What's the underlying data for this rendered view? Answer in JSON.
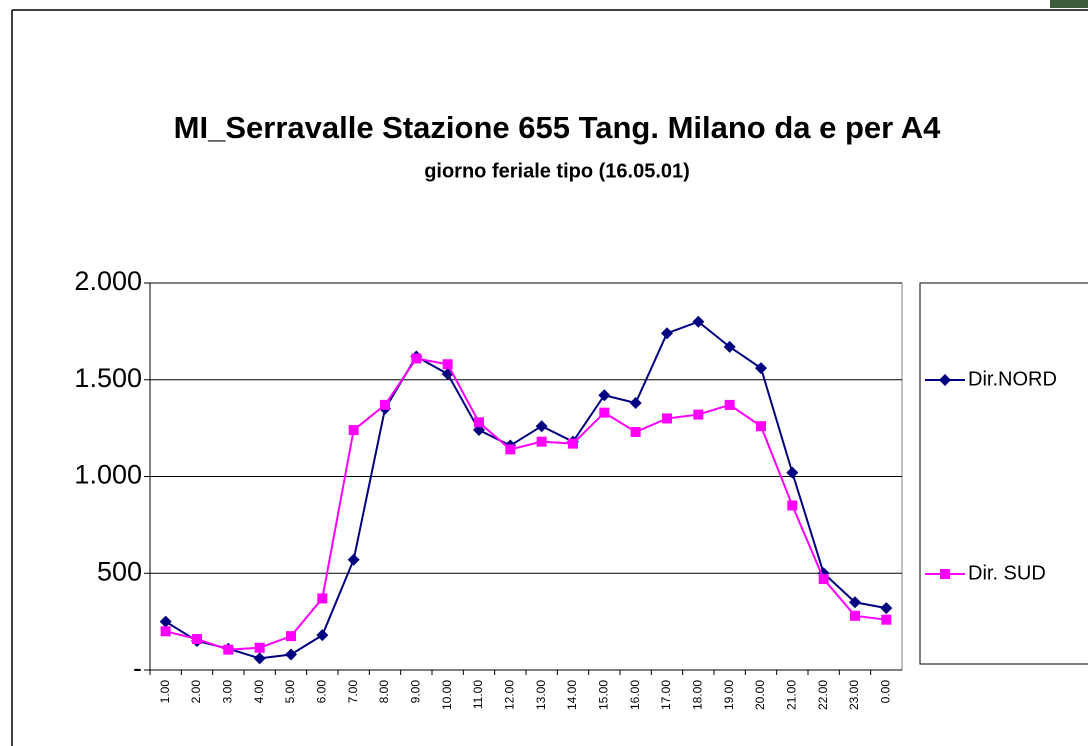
{
  "chart_data": {
    "type": "line",
    "title": "MI_Serravalle Stazione 655 Tang. Milano da e per A4",
    "subtitle": "giorno feriale tipo (16.05.01)",
    "categories": [
      "1.00",
      "2.00",
      "3.00",
      "4.00",
      "5.00",
      "6.00",
      "7.00",
      "8.00",
      "9.00",
      "10.00",
      "11.00",
      "12.00",
      "13.00",
      "14.00",
      "15.00",
      "16.00",
      "17.00",
      "18.00",
      "19.00",
      "20.00",
      "21.00",
      "22.00",
      "23.00",
      "0.00"
    ],
    "series": [
      {
        "name": "Dir.NORD",
        "color": "#000080",
        "marker": "diamond",
        "values": [
          250,
          150,
          110,
          60,
          80,
          180,
          570,
          1350,
          1620,
          1530,
          1240,
          1160,
          1260,
          1180,
          1420,
          1380,
          1740,
          1800,
          1670,
          1560,
          1020,
          500,
          350,
          320
        ]
      },
      {
        "name": "Dir. SUD",
        "color": "#ff00ff",
        "marker": "square",
        "values": [
          200,
          160,
          105,
          115,
          175,
          370,
          1240,
          1370,
          1610,
          1580,
          1280,
          1140,
          1180,
          1170,
          1330,
          1230,
          1300,
          1320,
          1370,
          1260,
          850,
          470,
          280,
          260
        ]
      }
    ],
    "ylim": [
      0,
      2000
    ],
    "yticks": [
      {
        "value": 0,
        "label": "-"
      },
      500,
      {
        "value": 1000,
        "label": "1.000"
      },
      {
        "value": 1500,
        "label": "1.500"
      },
      {
        "value": 2000,
        "label": "2.000"
      }
    ],
    "grid": true,
    "legend": "right"
  }
}
